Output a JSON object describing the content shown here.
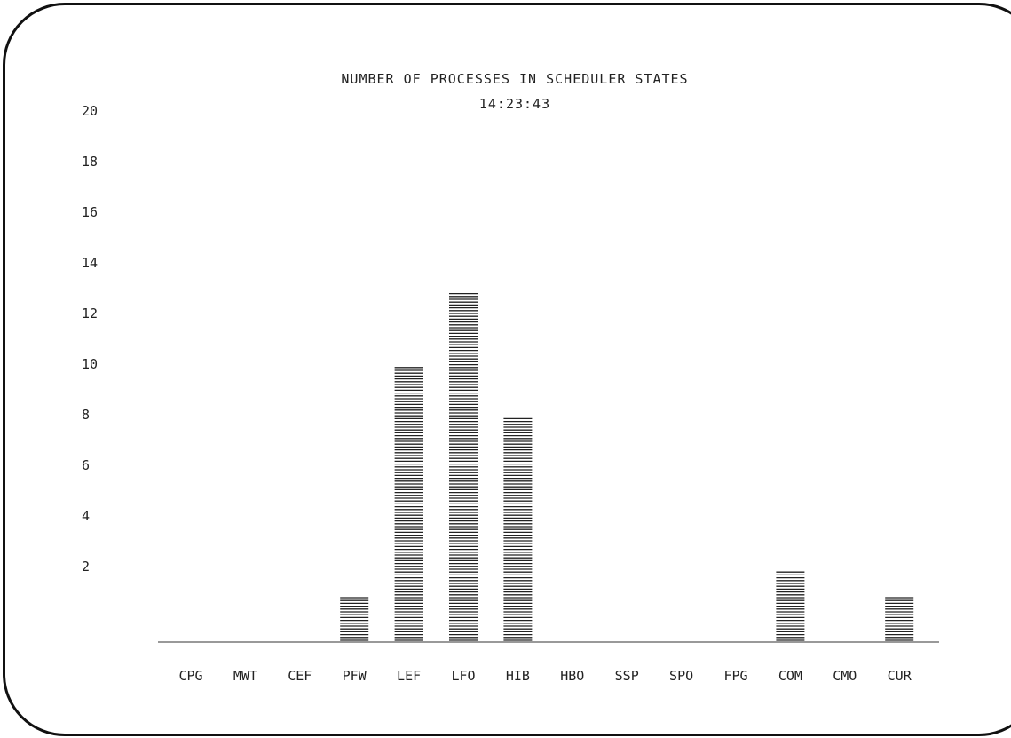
{
  "chart_data": {
    "type": "bar",
    "title": "NUMBER OF PROCESSES IN SCHEDULER STATES",
    "subtitle": "14:23:43",
    "xlabel": "",
    "ylabel": "",
    "categories": [
      "CPG",
      "MWT",
      "CEF",
      "PFW",
      "LEF",
      "LFO",
      "HIB",
      "HBO",
      "SSP",
      "SPO",
      "FPG",
      "COM",
      "CMO",
      "CUR"
    ],
    "values": [
      0,
      0,
      0,
      1,
      10,
      13,
      8,
      0,
      0,
      0,
      0,
      2,
      0,
      1
    ],
    "yticks": [
      2,
      4,
      6,
      8,
      10,
      12,
      14,
      16,
      18,
      20
    ],
    "ylim": [
      0,
      20
    ],
    "grid": false,
    "legend": "none",
    "bar_fill": "horizontal-hatch",
    "colors": {
      "ink": "#222222",
      "background": "#ffffff"
    }
  }
}
